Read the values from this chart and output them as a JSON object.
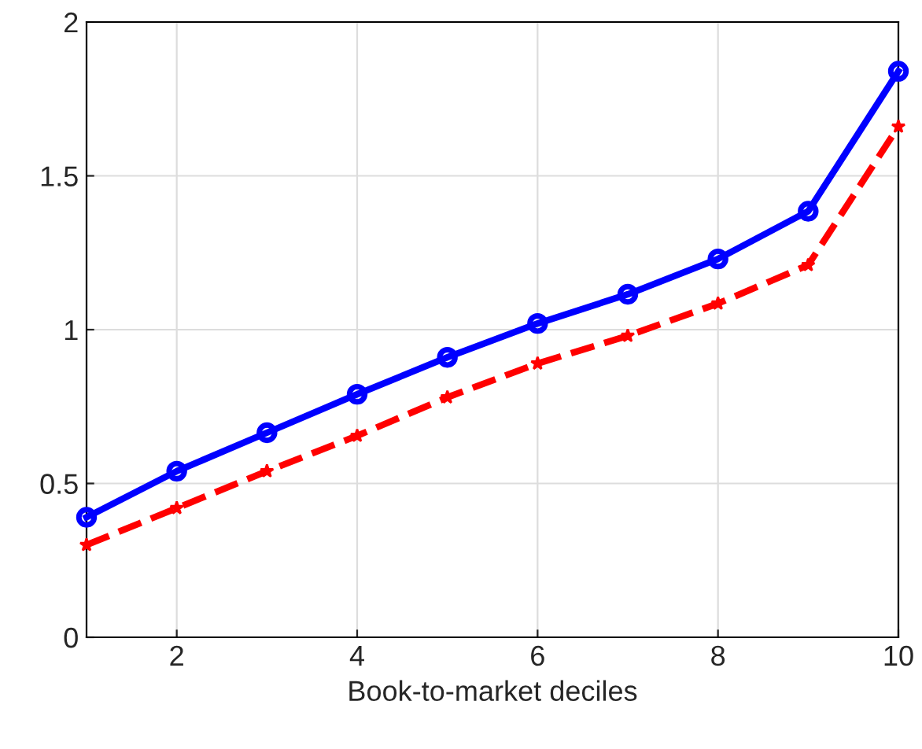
{
  "chart_data": {
    "type": "line",
    "xlabel": "Book-to-market deciles",
    "x": [
      1,
      2,
      3,
      4,
      5,
      6,
      7,
      8,
      9,
      10
    ],
    "series": [
      {
        "color": "#0000ff",
        "marker": "circle",
        "line_style": "solid",
        "values": [
          0.39,
          0.54,
          0.665,
          0.79,
          0.91,
          1.02,
          1.115,
          1.23,
          1.385,
          1.84
        ]
      },
      {
        "color": "#ff0000",
        "marker": "star",
        "line_style": "dashed",
        "values": [
          0.3,
          0.42,
          0.54,
          0.655,
          0.78,
          0.89,
          0.98,
          1.085,
          1.21,
          1.66
        ]
      }
    ],
    "xlim": [
      1,
      10
    ],
    "xticks": [
      2,
      4,
      6,
      8,
      10
    ],
    "ylim": [
      0,
      2
    ],
    "yticks": [
      0,
      0.5,
      1,
      1.5,
      2
    ],
    "grid": true,
    "legend": false
  }
}
